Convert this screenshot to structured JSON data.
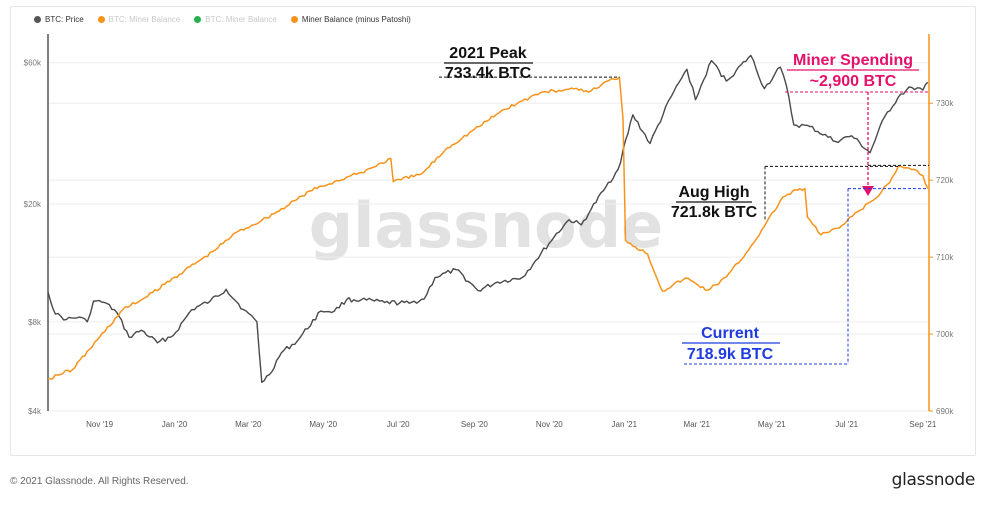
{
  "legend": [
    {
      "label": "BTC: Price",
      "color": "#555555",
      "muted": false
    },
    {
      "label": "BTC: Miner Balance",
      "color": "#f7931a",
      "muted": true
    },
    {
      "label": "BTC: Miner Balance",
      "color": "#22b14c",
      "muted": true
    },
    {
      "label": "Miner Balance (minus Patoshi)",
      "color": "#f7931a",
      "muted": false
    }
  ],
  "watermark": "glassnode",
  "footer": {
    "copyright": "© 2021 Glassnode. All Rights Reserved.",
    "brand": "glassnode"
  },
  "colors": {
    "price": "#4a4a4a",
    "balance": "#f7931a",
    "right_axis": "#f7931a",
    "left_axis": "#555555",
    "grid": "#eeeeee",
    "spending": "#e6106b",
    "current": "#1f3ce0",
    "label": "#111111"
  },
  "chart_data": {
    "type": "line",
    "x_range": [
      "2019-09-20",
      "2021-09-06"
    ],
    "x_ticks": [
      {
        "date": "2019-11-01",
        "label": "Nov '19"
      },
      {
        "date": "2020-01-01",
        "label": "Jan '20"
      },
      {
        "date": "2020-03-01",
        "label": "Mar '20"
      },
      {
        "date": "2020-05-01",
        "label": "May '20"
      },
      {
        "date": "2020-07-01",
        "label": "Jul '20"
      },
      {
        "date": "2020-09-01",
        "label": "Sep '20"
      },
      {
        "date": "2020-11-01",
        "label": "Nov '20"
      },
      {
        "date": "2021-01-01",
        "label": "Jan '21"
      },
      {
        "date": "2021-03-01",
        "label": "Mar '21"
      },
      {
        "date": "2021-05-01",
        "label": "May '21"
      },
      {
        "date": "2021-07-01",
        "label": "Jul '21"
      },
      {
        "date": "2021-09-01",
        "label": "Sep '21"
      }
    ],
    "left_axis": {
      "scale": "log",
      "range": [
        4000,
        75000
      ],
      "ticks": [
        {
          "value": 60000,
          "label": "$60k"
        },
        {
          "value": 20000,
          "label": "$20k"
        },
        {
          "value": 8000,
          "label": "$8k"
        },
        {
          "value": 4000,
          "label": "$4k"
        }
      ]
    },
    "right_axis": {
      "scale": "linear",
      "range": [
        690000,
        739000
      ],
      "ticks": [
        {
          "value": 730000,
          "label": "730k"
        },
        {
          "value": 720000,
          "label": "720k"
        },
        {
          "value": 710000,
          "label": "710k"
        },
        {
          "value": 700000,
          "label": "700k"
        },
        {
          "value": 690000,
          "label": "690k"
        }
      ]
    },
    "series": [
      {
        "name": "BTC: Price",
        "axis": "left",
        "points": [
          [
            "2019-09-20",
            10100
          ],
          [
            "2019-09-26",
            8500
          ],
          [
            "2019-10-05",
            8150
          ],
          [
            "2019-10-15",
            8300
          ],
          [
            "2019-10-22",
            8000
          ],
          [
            "2019-10-27",
            9400
          ],
          [
            "2019-11-05",
            9300
          ],
          [
            "2019-11-15",
            8600
          ],
          [
            "2019-11-25",
            7100
          ],
          [
            "2019-12-05",
            7500
          ],
          [
            "2019-12-18",
            6800
          ],
          [
            "2019-12-31",
            7200
          ],
          [
            "2020-01-15",
            8800
          ],
          [
            "2020-01-30",
            9400
          ],
          [
            "2020-02-12",
            10300
          ],
          [
            "2020-02-26",
            8800
          ],
          [
            "2020-03-08",
            8000
          ],
          [
            "2020-03-12",
            5000
          ],
          [
            "2020-03-18",
            5300
          ],
          [
            "2020-03-28",
            6300
          ],
          [
            "2020-04-10",
            6900
          ],
          [
            "2020-04-29",
            8700
          ],
          [
            "2020-05-10",
            8700
          ],
          [
            "2020-05-20",
            9500
          ],
          [
            "2020-06-01",
            9500
          ],
          [
            "2020-06-20",
            9300
          ],
          [
            "2020-07-10",
            9250
          ],
          [
            "2020-07-22",
            9550
          ],
          [
            "2020-07-31",
            11300
          ],
          [
            "2020-08-17",
            12000
          ],
          [
            "2020-09-04",
            10200
          ],
          [
            "2020-09-20",
            10900
          ],
          [
            "2020-10-10",
            11300
          ],
          [
            "2020-10-21",
            12900
          ],
          [
            "2020-11-05",
            15500
          ],
          [
            "2020-11-17",
            17700
          ],
          [
            "2020-11-27",
            17000
          ],
          [
            "2020-12-05",
            19200
          ],
          [
            "2020-12-17",
            22800
          ],
          [
            "2020-12-27",
            26200
          ],
          [
            "2021-01-08",
            40000
          ],
          [
            "2021-01-22",
            32000
          ],
          [
            "2021-02-08",
            46000
          ],
          [
            "2021-02-21",
            57000
          ],
          [
            "2021-02-28",
            45000
          ],
          [
            "2021-03-13",
            61000
          ],
          [
            "2021-03-25",
            52000
          ],
          [
            "2021-04-14",
            63500
          ],
          [
            "2021-04-25",
            49000
          ],
          [
            "2021-05-08",
            58000
          ],
          [
            "2021-05-13",
            50000
          ],
          [
            "2021-05-19",
            37000
          ],
          [
            "2021-06-01",
            36500
          ],
          [
            "2021-06-22",
            32500
          ],
          [
            "2021-07-05",
            34000
          ],
          [
            "2021-07-20",
            29800
          ],
          [
            "2021-08-01",
            39500
          ],
          [
            "2021-08-14",
            47000
          ],
          [
            "2021-08-23",
            49500
          ],
          [
            "2021-09-01",
            48500
          ],
          [
            "2021-09-05",
            51500
          ]
        ]
      },
      {
        "name": "Miner Balance (minus Patoshi)",
        "axis": "right",
        "points": [
          [
            "2019-09-20",
            694200
          ],
          [
            "2019-10-10",
            695400
          ],
          [
            "2019-11-01",
            699600
          ],
          [
            "2019-11-20",
            703200
          ],
          [
            "2019-12-10",
            704900
          ],
          [
            "2020-01-01",
            707400
          ],
          [
            "2020-02-01",
            710700
          ],
          [
            "2020-02-20",
            713200
          ],
          [
            "2020-03-12",
            714800
          ],
          [
            "2020-04-01",
            716600
          ],
          [
            "2020-04-20",
            718600
          ],
          [
            "2020-05-10",
            719800
          ],
          [
            "2020-06-01",
            721000
          ],
          [
            "2020-06-25",
            722800
          ],
          [
            "2020-06-27",
            719800
          ],
          [
            "2020-07-20",
            720800
          ],
          [
            "2020-08-10",
            724200
          ],
          [
            "2020-09-01",
            726600
          ],
          [
            "2020-09-25",
            729200
          ],
          [
            "2020-10-10",
            730300
          ],
          [
            "2020-10-25",
            731400
          ],
          [
            "2020-11-15",
            731800
          ],
          [
            "2020-12-05",
            731600
          ],
          [
            "2020-12-20",
            733000
          ],
          [
            "2020-12-28",
            733400
          ],
          [
            "2020-12-31",
            728000
          ],
          [
            "2021-01-02",
            712200
          ],
          [
            "2021-01-20",
            710400
          ],
          [
            "2021-02-01",
            705600
          ],
          [
            "2021-02-20",
            707300
          ],
          [
            "2021-03-10",
            705700
          ],
          [
            "2021-03-25",
            707400
          ],
          [
            "2021-04-10",
            710500
          ],
          [
            "2021-04-25",
            714000
          ],
          [
            "2021-05-10",
            717800
          ],
          [
            "2021-05-22",
            718700
          ],
          [
            "2021-05-28",
            718900
          ],
          [
            "2021-05-30",
            715200
          ],
          [
            "2021-06-10",
            712900
          ],
          [
            "2021-06-25",
            713800
          ],
          [
            "2021-07-10",
            715900
          ],
          [
            "2021-07-25",
            717700
          ],
          [
            "2021-08-05",
            719700
          ],
          [
            "2021-08-12",
            721800
          ],
          [
            "2021-08-25",
            721400
          ],
          [
            "2021-09-01",
            720600
          ],
          [
            "2021-09-05",
            718900
          ]
        ]
      }
    ],
    "annotations": [
      {
        "id": "peak",
        "title": "2021 Peak",
        "value": "733.4k BTC",
        "color": "#111111"
      },
      {
        "id": "aug",
        "title": "Aug High",
        "value": "721.8k BTC",
        "color": "#111111"
      },
      {
        "id": "spending",
        "title": "Miner Spending",
        "value": "~2,900 BTC",
        "color": "#e6106b"
      },
      {
        "id": "current",
        "title": "Current",
        "value": "718.9k BTC",
        "color": "#1f3ce0"
      }
    ]
  }
}
